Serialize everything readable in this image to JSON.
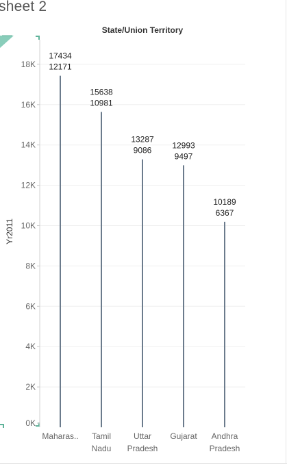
{
  "sheet": {
    "title": "sheet 2"
  },
  "chart_data": {
    "type": "bar",
    "title": "State/Union Territory",
    "xlabel": "",
    "ylabel": "Yr2011",
    "categories": [
      "Maharas..",
      "Tamil Nadu",
      "Uttar Pradesh",
      "Gujarat",
      "Andhra Pradesh"
    ],
    "values": [
      17434,
      15638,
      13287,
      12993,
      10189
    ],
    "label_secondary": [
      12171,
      10981,
      9086,
      9497,
      6367
    ],
    "ylim": [
      0,
      19000
    ],
    "yticks": [
      0,
      2000,
      4000,
      6000,
      8000,
      10000,
      12000,
      14000,
      16000,
      18000
    ],
    "ytick_labels": [
      "0K",
      "2K",
      "4K",
      "6K",
      "8K",
      "10K",
      "12K",
      "14K",
      "16K",
      "18K"
    ],
    "grid": true,
    "bar_style": "thin line",
    "bar_color": "#6b7b8c"
  }
}
